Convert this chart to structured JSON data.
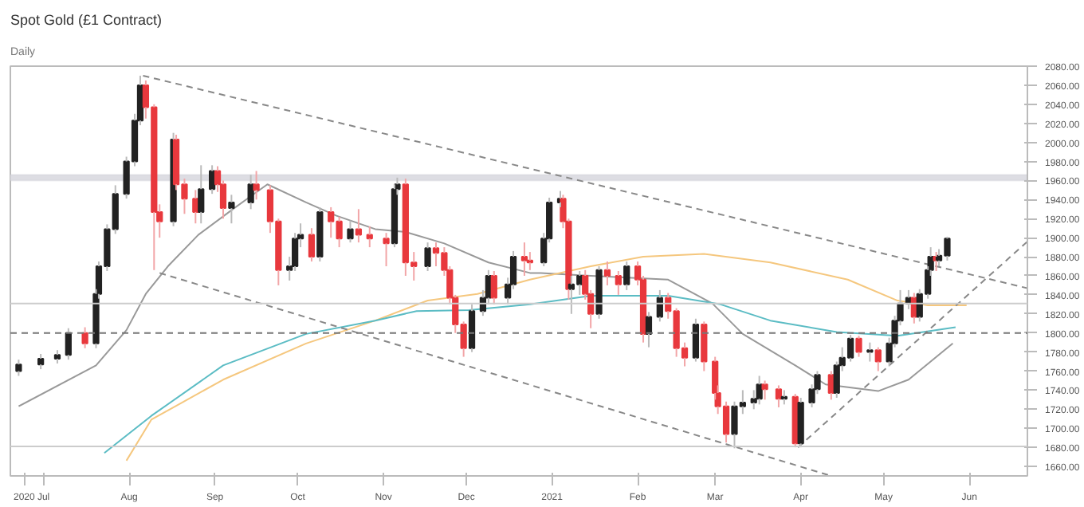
{
  "chart_data": {
    "type": "candlestick",
    "title": "Spot Gold (£1 Contract)",
    "subtitle": "Daily",
    "x": [
      "2020-06-22",
      "2020-06-30",
      "2020-07-06",
      "2020-07-10",
      "2020-07-16",
      "2020-07-20",
      "2020-07-21",
      "2020-07-24",
      "2020-07-27",
      "2020-07-31",
      "2020-08-03",
      "2020-08-05",
      "2020-08-07",
      "2020-08-10",
      "2020-08-12",
      "2020-08-17",
      "2020-08-18",
      "2020-08-21",
      "2020-08-25",
      "2020-08-27",
      "2020-08-31",
      "2020-09-02",
      "2020-09-04",
      "2020-09-07",
      "2020-09-14",
      "2020-09-16",
      "2020-09-21",
      "2020-09-24",
      "2020-09-28",
      "2020-09-30",
      "2020-10-02",
      "2020-10-06",
      "2020-10-09",
      "2020-10-13",
      "2020-10-16",
      "2020-10-20",
      "2020-10-23",
      "2020-10-27",
      "2020-11-02",
      "2020-11-05",
      "2020-11-06",
      "2020-11-09",
      "2020-11-12",
      "2020-11-17",
      "2020-11-20",
      "2020-11-23",
      "2020-11-25",
      "2020-11-27",
      "2020-11-30",
      "2020-12-03",
      "2020-12-07",
      "2020-12-09",
      "2020-12-11",
      "2020-12-16",
      "2020-12-18",
      "2020-12-22",
      "2020-12-24",
      "2020-12-29",
      "2020-12-31",
      "2021-01-04",
      "2021-01-05",
      "2021-01-07",
      "2021-01-08",
      "2021-01-11",
      "2021-01-13",
      "2021-01-15",
      "2021-01-18",
      "2021-01-21",
      "2021-01-25",
      "2021-01-28",
      "2021-02-01",
      "2021-02-03",
      "2021-02-05",
      "2021-02-09",
      "2021-02-12",
      "2021-02-15",
      "2021-02-18",
      "2021-02-22",
      "2021-02-25",
      "2021-03-01",
      "2021-03-02",
      "2021-03-05",
      "2021-03-08",
      "2021-03-11",
      "2021-03-15",
      "2021-03-17",
      "2021-03-19",
      "2021-03-24",
      "2021-03-26",
      "2021-03-30",
      "2021-04-01",
      "2021-04-05",
      "2021-04-07",
      "2021-04-12",
      "2021-04-14",
      "2021-04-16",
      "2021-04-19",
      "2021-04-22",
      "2021-04-26",
      "2021-04-29",
      "2021-05-03",
      "2021-05-05",
      "2021-05-07",
      "2021-05-10",
      "2021-05-12",
      "2021-05-14",
      "2021-05-17",
      "2021-05-18",
      "2021-05-20",
      "2021-05-21",
      "2021-05-24"
    ],
    "ohlc": [
      [
        1760,
        1772,
        1755,
        1767
      ],
      [
        1767,
        1778,
        1762,
        1773
      ],
      [
        1773,
        1782,
        1768,
        1777
      ],
      [
        1777,
        1805,
        1772,
        1800
      ],
      [
        1800,
        1806,
        1784,
        1789
      ],
      [
        1789,
        1846,
        1784,
        1841
      ],
      [
        1841,
        1875,
        1836,
        1870
      ],
      [
        1870,
        1914,
        1865,
        1909
      ],
      [
        1909,
        1955,
        1904,
        1946
      ],
      [
        1946,
        1985,
        1941,
        1980
      ],
      [
        1980,
        2030,
        1975,
        2023
      ],
      [
        2023,
        2070,
        2018,
        2060
      ],
      [
        2060,
        2065,
        2025,
        2037
      ],
      [
        2037,
        2040,
        1866,
        1927
      ],
      [
        1927,
        1935,
        1900,
        1917
      ],
      [
        1917,
        2010,
        1912,
        2003
      ],
      [
        2003,
        2008,
        1950,
        1956
      ],
      [
        1956,
        1962,
        1925,
        1941
      ],
      [
        1941,
        1950,
        1915,
        1927
      ],
      [
        1927,
        1976,
        1915,
        1951
      ],
      [
        1951,
        1976,
        1946,
        1970
      ],
      [
        1970,
        1975,
        1948,
        1956
      ],
      [
        1956,
        1960,
        1920,
        1931
      ],
      [
        1931,
        1945,
        1915,
        1937
      ],
      [
        1937,
        1966,
        1930,
        1956
      ],
      [
        1956,
        1970,
        1940,
        1950
      ],
      [
        1950,
        1955,
        1905,
        1917
      ],
      [
        1917,
        1920,
        1850,
        1866
      ],
      [
        1866,
        1880,
        1855,
        1870
      ],
      [
        1870,
        1905,
        1865,
        1899
      ],
      [
        1899,
        1915,
        1890,
        1903
      ],
      [
        1903,
        1910,
        1875,
        1880
      ],
      [
        1880,
        1932,
        1875,
        1927
      ],
      [
        1927,
        1932,
        1900,
        1917
      ],
      [
        1917,
        1922,
        1890,
        1899
      ],
      [
        1899,
        1918,
        1895,
        1909
      ],
      [
        1909,
        1930,
        1895,
        1903
      ],
      [
        1903,
        1912,
        1890,
        1899
      ],
      [
        1899,
        1905,
        1870,
        1894
      ],
      [
        1894,
        1956,
        1890,
        1951
      ],
      [
        1951,
        1963,
        1945,
        1956
      ],
      [
        1956,
        1962,
        1860,
        1874
      ],
      [
        1874,
        1885,
        1855,
        1870
      ],
      [
        1870,
        1895,
        1865,
        1889
      ],
      [
        1889,
        1895,
        1870,
        1884
      ],
      [
        1884,
        1890,
        1860,
        1866
      ],
      [
        1866,
        1870,
        1830,
        1837
      ],
      [
        1837,
        1840,
        1800,
        1809
      ],
      [
        1809,
        1812,
        1775,
        1784
      ],
      [
        1784,
        1830,
        1780,
        1823
      ],
      [
        1823,
        1845,
        1818,
        1837
      ],
      [
        1837,
        1866,
        1830,
        1860
      ],
      [
        1860,
        1865,
        1830,
        1837
      ],
      [
        1837,
        1858,
        1830,
        1851
      ],
      [
        1851,
        1886,
        1846,
        1880
      ],
      [
        1880,
        1895,
        1860,
        1876
      ],
      [
        1876,
        1885,
        1866,
        1874
      ],
      [
        1874,
        1905,
        1870,
        1899
      ],
      [
        1899,
        1942,
        1895,
        1937
      ],
      [
        1937,
        1949,
        1932,
        1941
      ],
      [
        1941,
        1945,
        1910,
        1917
      ],
      [
        1917,
        1920,
        1835,
        1846
      ],
      [
        1846,
        1860,
        1820,
        1851
      ],
      [
        1851,
        1865,
        1840,
        1860
      ],
      [
        1860,
        1866,
        1835,
        1841
      ],
      [
        1841,
        1845,
        1805,
        1820
      ],
      [
        1820,
        1870,
        1815,
        1866
      ],
      [
        1866,
        1875,
        1850,
        1860
      ],
      [
        1860,
        1865,
        1840,
        1851
      ],
      [
        1851,
        1875,
        1845,
        1870
      ],
      [
        1870,
        1875,
        1850,
        1856
      ],
      [
        1856,
        1860,
        1790,
        1799
      ],
      [
        1799,
        1822,
        1785,
        1817
      ],
      [
        1817,
        1845,
        1812,
        1837
      ],
      [
        1837,
        1842,
        1815,
        1823
      ],
      [
        1823,
        1826,
        1775,
        1784
      ],
      [
        1784,
        1790,
        1765,
        1774
      ],
      [
        1774,
        1815,
        1770,
        1809
      ],
      [
        1809,
        1812,
        1760,
        1770
      ],
      [
        1770,
        1775,
        1730,
        1737
      ],
      [
        1737,
        1745,
        1715,
        1723
      ],
      [
        1723,
        1728,
        1685,
        1694
      ],
      [
        1694,
        1728,
        1679,
        1723
      ],
      [
        1723,
        1740,
        1715,
        1727
      ],
      [
        1727,
        1740,
        1720,
        1731
      ],
      [
        1731,
        1755,
        1725,
        1746
      ],
      [
        1746,
        1750,
        1730,
        1741
      ],
      [
        1741,
        1745,
        1722,
        1731
      ],
      [
        1731,
        1740,
        1725,
        1733
      ],
      [
        1733,
        1736,
        1680,
        1684
      ],
      [
        1684,
        1732,
        1680,
        1727
      ],
      [
        1727,
        1746,
        1722,
        1741
      ],
      [
        1741,
        1760,
        1736,
        1756
      ],
      [
        1756,
        1760,
        1730,
        1737
      ],
      [
        1737,
        1770,
        1732,
        1766
      ],
      [
        1766,
        1785,
        1760,
        1774
      ],
      [
        1774,
        1798,
        1770,
        1794
      ],
      [
        1794,
        1797,
        1775,
        1780
      ],
      [
        1780,
        1790,
        1770,
        1782
      ],
      [
        1782,
        1785,
        1760,
        1770
      ],
      [
        1770,
        1795,
        1765,
        1789
      ],
      [
        1789,
        1818,
        1785,
        1813
      ],
      [
        1813,
        1845,
        1808,
        1831
      ],
      [
        1831,
        1845,
        1825,
        1837
      ],
      [
        1837,
        1842,
        1810,
        1817
      ],
      [
        1817,
        1846,
        1812,
        1841
      ],
      [
        1841,
        1870,
        1836,
        1866
      ],
      [
        1866,
        1890,
        1860,
        1880
      ],
      [
        1880,
        1885,
        1865,
        1876
      ],
      [
        1876,
        1888,
        1870,
        1881
      ],
      [
        1881,
        1901,
        1876,
        1899
      ]
    ],
    "series": [
      {
        "type": "line",
        "color": "#999999",
        "x": [
          "2020-06-22",
          "2020-07-20",
          "2020-07-31",
          "2020-08-07",
          "2020-08-15",
          "2020-08-26",
          "2020-09-08",
          "2020-09-20",
          "2020-10-04",
          "2020-10-15",
          "2020-10-29",
          "2020-11-09",
          "2020-11-23",
          "2020-12-09",
          "2020-12-24",
          "2020-12-28",
          "2021-01-15",
          "2021-02-12",
          "2021-02-28",
          "2021-03-11",
          "2021-03-30",
          "2021-04-10",
          "2021-04-29",
          "2021-05-10",
          "2021-05-26"
        ],
        "values": [
          1723,
          1766,
          1803,
          1841,
          1870,
          1903,
          1931,
          1956,
          1937,
          1923,
          1909,
          1906,
          1894,
          1874,
          1863,
          1863,
          1860,
          1856,
          1831,
          1799,
          1766,
          1746,
          1739,
          1751,
          1789
        ]
      },
      {
        "type": "line",
        "color": "#f5c77e",
        "x": [
          "2020-07-31",
          "2020-08-09",
          "2020-09-04",
          "2020-10-04",
          "2020-10-29",
          "2020-11-17",
          "2020-12-05",
          "2020-12-24",
          "2021-01-15",
          "2021-02-03",
          "2021-02-25",
          "2021-03-21",
          "2021-04-18",
          "2021-05-06",
          "2021-05-17",
          "2021-05-31"
        ],
        "values": [
          1666,
          1709,
          1751,
          1789,
          1813,
          1834,
          1841,
          1856,
          1870,
          1880,
          1883,
          1874,
          1856,
          1834,
          1829,
          1829
        ]
      },
      {
        "type": "line",
        "color": "#5bbcc4",
        "x": [
          "2020-07-23",
          "2020-08-09",
          "2020-09-04",
          "2020-10-04",
          "2020-10-29",
          "2020-11-13",
          "2020-12-02",
          "2020-12-24",
          "2021-01-15",
          "2021-02-12",
          "2021-03-03",
          "2021-03-21",
          "2021-04-14",
          "2021-05-06",
          "2021-05-27"
        ],
        "values": [
          1674,
          1713,
          1766,
          1799,
          1813,
          1823,
          1824,
          1830,
          1839,
          1839,
          1830,
          1813,
          1801,
          1797,
          1806
        ]
      },
      {
        "type": "line",
        "color": "#888888",
        "line_style": "dashed",
        "x": [
          "2020-08-06",
          "2021-06-22"
        ],
        "values": [
          2070,
          1847
        ]
      },
      {
        "type": "line",
        "color": "#888888",
        "line_style": "dashed",
        "x": [
          "2020-08-12",
          "2021-04-12"
        ],
        "values": [
          1863,
          1650
        ]
      },
      {
        "type": "line",
        "color": "#888888",
        "line_style": "dashed",
        "x": [
          "2021-03-31",
          "2021-06-22"
        ],
        "values": [
          1680,
          1896
        ]
      }
    ],
    "xlim": [
      "2020-06-19",
      "2021-06-22"
    ],
    "xticks": [
      {
        "value": "2020-06-24",
        "label": "2020"
      },
      {
        "value": "2020-07-01",
        "label": "Jul"
      },
      {
        "value": "2020-08-01",
        "label": "Aug"
      },
      {
        "value": "2020-09-01",
        "label": "Sep"
      },
      {
        "value": "2020-10-01",
        "label": "Oct"
      },
      {
        "value": "2020-11-01",
        "label": "Nov"
      },
      {
        "value": "2020-12-01",
        "label": "Dec"
      },
      {
        "value": "2021-01-01",
        "label": "2021"
      },
      {
        "value": "2021-02-01",
        "label": "Feb"
      },
      {
        "value": "2021-03-01",
        "label": "Mar"
      },
      {
        "value": "2021-04-01",
        "label": "Apr"
      },
      {
        "value": "2021-05-01",
        "label": "May"
      },
      {
        "value": "2021-06-01",
        "label": "Jun"
      }
    ],
    "ylim": [
      1650,
      2080
    ],
    "yticks": [
      {
        "value": 1660,
        "label": "1660.00"
      },
      {
        "value": 1680,
        "label": "1680.00"
      },
      {
        "value": 1700,
        "label": "1700.00"
      },
      {
        "value": 1720,
        "label": "1720.00"
      },
      {
        "value": 1740,
        "label": "1740.00"
      },
      {
        "value": 1760,
        "label": "1760.00"
      },
      {
        "value": 1780,
        "label": "1780.00"
      },
      {
        "value": 1800,
        "label": "1800.00"
      },
      {
        "value": 1820,
        "label": "1820.00"
      },
      {
        "value": 1840,
        "label": "1840.00"
      },
      {
        "value": 1860,
        "label": "1860.00"
      },
      {
        "value": 1880,
        "label": "1880.00"
      },
      {
        "value": 1900,
        "label": "1900.00"
      },
      {
        "value": 1920,
        "label": "1920.00"
      },
      {
        "value": 1940,
        "label": "1940.00"
      },
      {
        "value": 1960,
        "label": "1960.00"
      },
      {
        "value": 1980,
        "label": "1980.00"
      },
      {
        "value": 2000,
        "label": "2000.00"
      },
      {
        "value": 2020,
        "label": "2020.00"
      },
      {
        "value": 2040,
        "label": "2040.00"
      },
      {
        "value": 2060,
        "label": "2060.00"
      },
      {
        "value": 2080,
        "label": "2080.00"
      }
    ],
    "ref_lines": [
      {
        "axis": "y",
        "value": 1800,
        "color": "#777777",
        "line_style": "dashed"
      },
      {
        "axis": "y",
        "value": 1831,
        "color": "#cccccc",
        "line_style": "solid"
      },
      {
        "axis": "y",
        "value": 1681,
        "color": "#cccccc",
        "line_style": "solid"
      }
    ],
    "bands": [
      {
        "axis": "y",
        "from": 1960,
        "to": 1966,
        "color": "#dddde3"
      }
    ]
  }
}
